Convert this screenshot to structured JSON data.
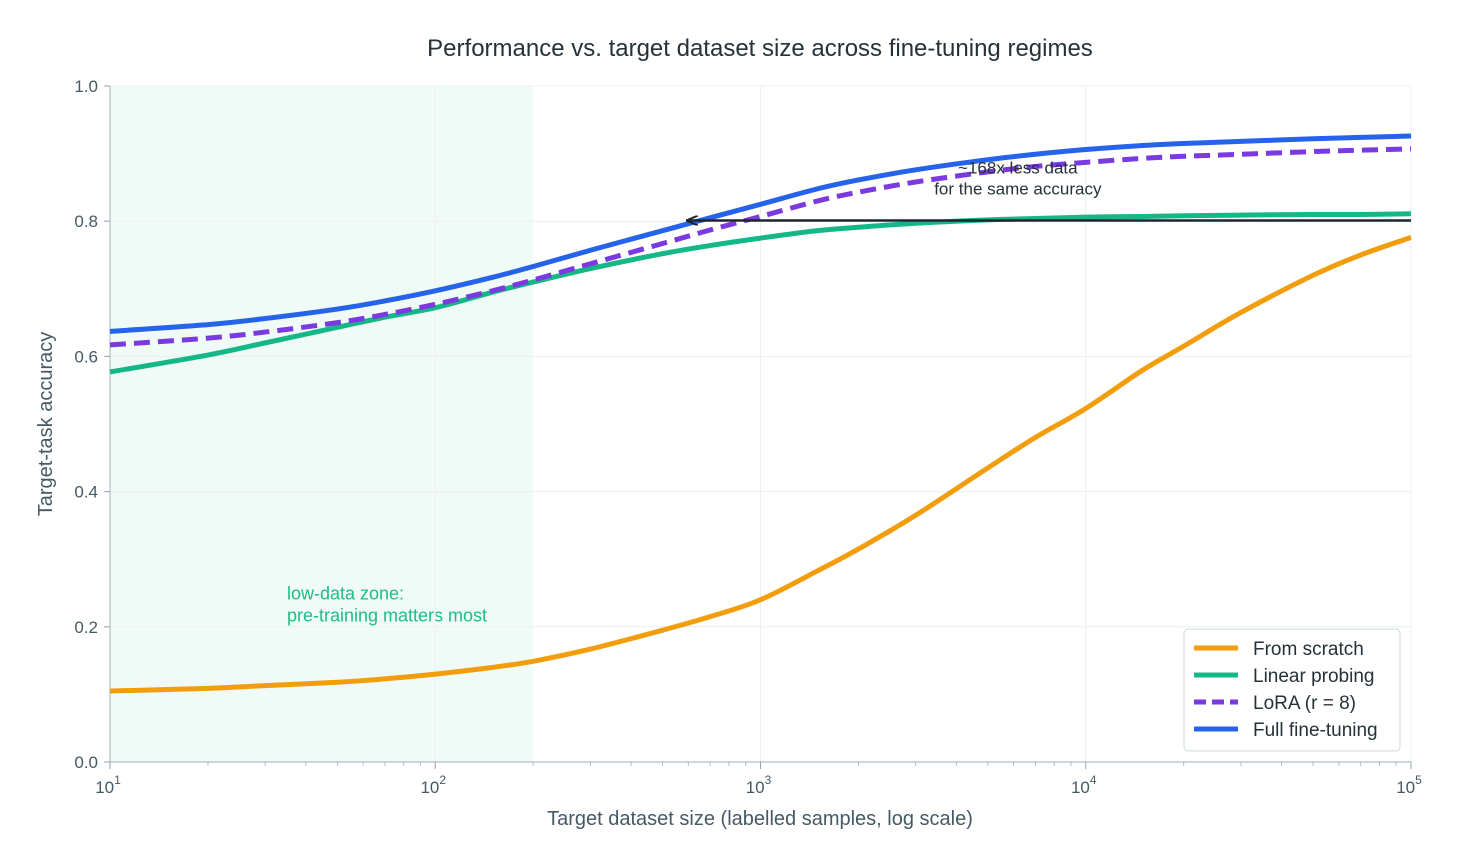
{
  "chart_data": {
    "type": "line",
    "title": "Performance vs. target dataset size across fine-tuning regimes",
    "xlabel": "Target dataset size (labelled samples, log scale)",
    "ylabel": "Target-task accuracy",
    "x_scale": "log",
    "xlim": [
      10,
      100000
    ],
    "ylim": [
      0,
      1.0
    ],
    "x_ticks": [
      {
        "base": "10",
        "exp": "1",
        "value": 10
      },
      {
        "base": "10",
        "exp": "2",
        "value": 100
      },
      {
        "base": "10",
        "exp": "3",
        "value": 1000
      },
      {
        "base": "10",
        "exp": "4",
        "value": 10000
      },
      {
        "base": "10",
        "exp": "5",
        "value": 100000
      }
    ],
    "y_ticks": [
      "0.0",
      "0.2",
      "0.4",
      "0.6",
      "0.8",
      "1.0"
    ],
    "grid": true,
    "legend_position": "bottom-right",
    "x": [
      10,
      20,
      30,
      50,
      70,
      100,
      150,
      200,
      300,
      500,
      700,
      1000,
      1500,
      2000,
      3000,
      5000,
      7000,
      10000,
      15000,
      20000,
      30000,
      50000,
      70000,
      100000
    ],
    "series": [
      {
        "name": "From scratch",
        "color": "#f29e0c",
        "dash": "solid",
        "values": [
          0.105,
          0.109,
          0.113,
          0.118,
          0.123,
          0.13,
          0.14,
          0.149,
          0.167,
          0.195,
          0.215,
          0.24,
          0.283,
          0.315,
          0.365,
          0.435,
          0.48,
          0.523,
          0.58,
          0.615,
          0.665,
          0.72,
          0.75,
          0.776
        ]
      },
      {
        "name": "Linear probing",
        "color": "#14b886",
        "dash": "solid",
        "values": [
          0.577,
          0.602,
          0.62,
          0.643,
          0.658,
          0.672,
          0.695,
          0.71,
          0.73,
          0.752,
          0.764,
          0.775,
          0.786,
          0.791,
          0.797,
          0.802,
          0.804,
          0.806,
          0.807,
          0.808,
          0.809,
          0.81,
          0.81,
          0.811
        ]
      },
      {
        "name": "LoRA (r = 8)",
        "color": "#7a3ae0",
        "dash": "dashed",
        "values": [
          0.617,
          0.627,
          0.636,
          0.65,
          0.662,
          0.677,
          0.697,
          0.713,
          0.737,
          0.767,
          0.787,
          0.807,
          0.83,
          0.843,
          0.858,
          0.873,
          0.881,
          0.887,
          0.893,
          0.896,
          0.899,
          0.903,
          0.905,
          0.907
        ]
      },
      {
        "name": "Full fine-tuning",
        "color": "#2563eb",
        "dash": "solid",
        "values": [
          0.637,
          0.647,
          0.656,
          0.67,
          0.682,
          0.697,
          0.717,
          0.733,
          0.757,
          0.786,
          0.805,
          0.825,
          0.848,
          0.861,
          0.876,
          0.891,
          0.899,
          0.906,
          0.912,
          0.915,
          0.918,
          0.922,
          0.924,
          0.926
        ]
      }
    ],
    "shaded_region": {
      "x": [
        10,
        200
      ],
      "color": "#e6f6f0",
      "label_lines": [
        "low-data zone:",
        "pre-training matters most"
      ],
      "label_x": 35,
      "label_y": 0.205
    },
    "annotation": {
      "lines": [
        "~168x less data",
        "for the same accuracy"
      ],
      "arrow_from": [
        100000,
        0.801
      ],
      "arrow_to": [
        595,
        0.801
      ],
      "text_x": 5000,
      "text_y": 0.86
    }
  }
}
